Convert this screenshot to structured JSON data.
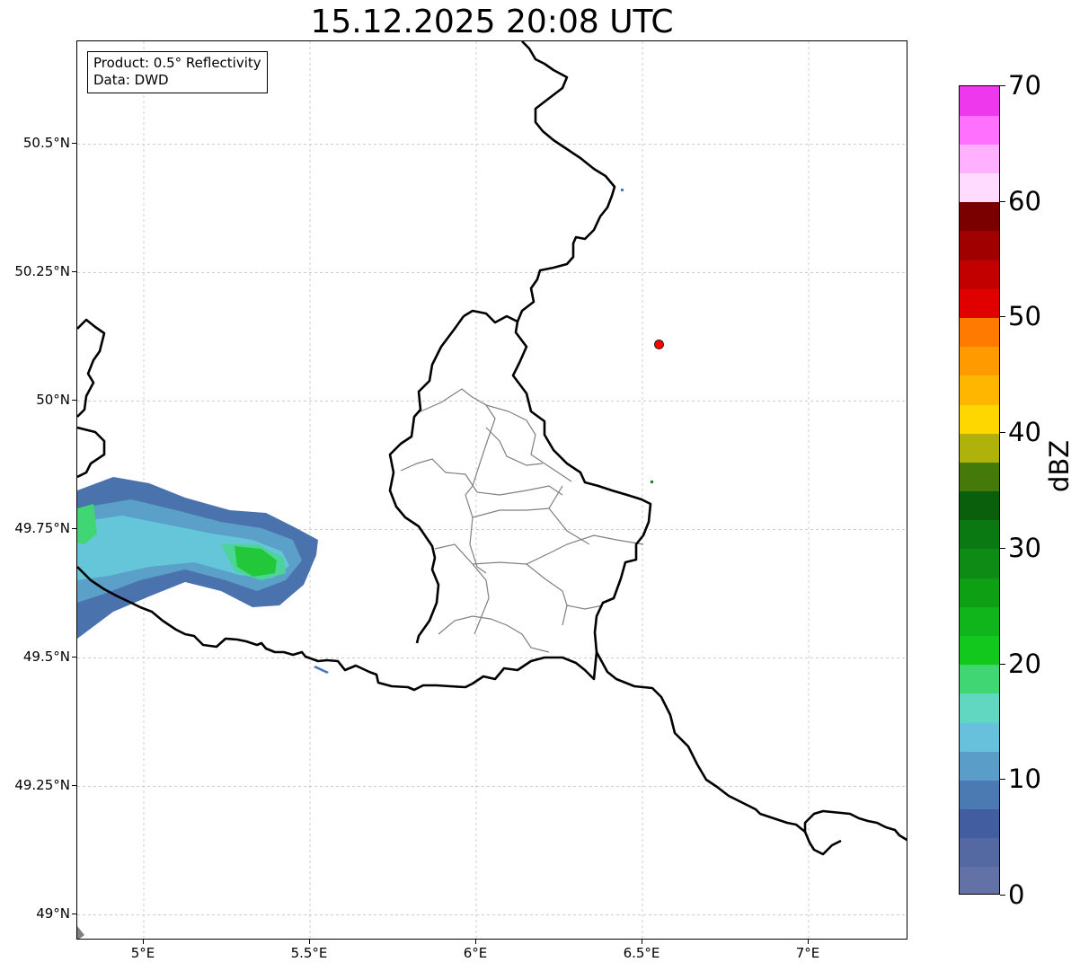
{
  "title": "15.12.2025 20:08 UTC",
  "info": {
    "product": "Product: 0.5° Reflectivity",
    "source": "Data: DWD"
  },
  "map": {
    "lon_range": [
      4.8,
      7.3
    ],
    "lat_range": [
      48.95,
      50.7
    ],
    "grid": true,
    "x_ticks": [
      {
        "value": 5.0,
        "label": "5°E"
      },
      {
        "value": 5.5,
        "label": "5.5°E"
      },
      {
        "value": 6.0,
        "label": "6°E"
      },
      {
        "value": 6.5,
        "label": "6.5°E"
      },
      {
        "value": 7.0,
        "label": "7°E"
      }
    ],
    "y_ticks": [
      {
        "value": 50.5,
        "label": "50.5°N"
      },
      {
        "value": 50.25,
        "label": "50.25°N"
      },
      {
        "value": 50.0,
        "label": "50°N"
      },
      {
        "value": 49.75,
        "label": "49.75°N"
      },
      {
        "value": 49.5,
        "label": "49.5°N"
      },
      {
        "value": 49.25,
        "label": "49.25°N"
      },
      {
        "value": 49.0,
        "label": "49°N"
      }
    ],
    "radar_site": {
      "lon": 6.55,
      "lat": 50.11,
      "color": "#ff0000"
    }
  },
  "colorbar": {
    "label": "dBZ",
    "min": 0,
    "max": 70,
    "tick_values": [
      "0",
      "10",
      "20",
      "30",
      "40",
      "50",
      "60",
      "70"
    ],
    "colors": [
      "#6272a6",
      "#5469a2",
      "#435ea0",
      "#4b7ab3",
      "#5a9dc8",
      "#67c0dc",
      "#61d6c1",
      "#3fd673",
      "#13c81c",
      "#10b51b",
      "#0e9f14",
      "#0d8b14",
      "#0b7912",
      "#095f0c",
      "#457a0a",
      "#afb20a",
      "#ffd700",
      "#ffb600",
      "#ff9b00",
      "#ff7a00",
      "#e00000",
      "#c20000",
      "#a00000",
      "#7a0000",
      "#ffdcff",
      "#ffb0ff",
      "#ff70ff",
      "#ee38ee"
    ]
  }
}
